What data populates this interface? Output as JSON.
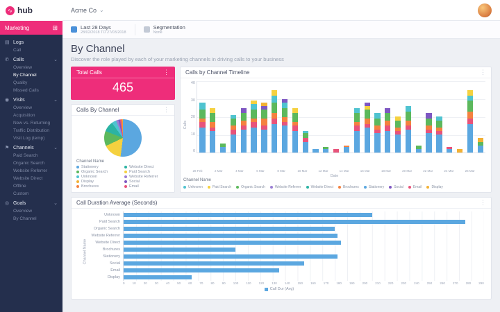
{
  "brand": {
    "logo_text": "hub"
  },
  "topbar": {
    "account": "Acme Co"
  },
  "filterbar": {
    "period": {
      "label": "Last 28 Days",
      "range": "28/02/2018 TO 27/03/2018"
    },
    "segmentation": {
      "label": "Segmentation",
      "value": "None"
    }
  },
  "sidebar": {
    "marketing": {
      "label": "Marketing"
    },
    "sections": [
      {
        "label": "Logs",
        "icon": "logs-icon",
        "expandable": false,
        "items": [
          {
            "label": "Call"
          }
        ]
      },
      {
        "label": "Calls",
        "icon": "calls-icon",
        "expandable": true,
        "items": [
          {
            "label": "Overview"
          },
          {
            "label": "By Channel",
            "active": true
          },
          {
            "label": "Quality"
          },
          {
            "label": "Missed Calls"
          }
        ]
      },
      {
        "label": "Visits",
        "icon": "visits-icon",
        "expandable": true,
        "items": [
          {
            "label": "Overview"
          },
          {
            "label": "Acquisition"
          },
          {
            "label": "New vs. Returning"
          },
          {
            "label": "Traffic Distribution"
          },
          {
            "label": "Visit Log (temp)"
          }
        ]
      },
      {
        "label": "Channels",
        "icon": "channels-icon",
        "expandable": true,
        "items": [
          {
            "label": "Paid Search"
          },
          {
            "label": "Organic Search"
          },
          {
            "label": "Website Referrer"
          },
          {
            "label": "Website Direct"
          },
          {
            "label": "Offline"
          },
          {
            "label": "Custom"
          }
        ]
      },
      {
        "label": "Goals",
        "icon": "goals-icon",
        "expandable": true,
        "items": [
          {
            "label": "Overview"
          },
          {
            "label": "By Channel"
          }
        ]
      }
    ]
  },
  "page": {
    "title": "By Channel",
    "subtitle": "Discover the role played by each of your marketing channels in driving calls to your business"
  },
  "cards": {
    "total_calls": {
      "title": "Total Calls",
      "value": "465"
    },
    "pie": {
      "title": "Calls By Channel",
      "legend_title": "Channel Name"
    },
    "timeline": {
      "title": "Calls by Channel Timeline",
      "legend_title": "Channel Name"
    },
    "duration": {
      "title": "Call Duration Average (Seconds)"
    }
  },
  "channels": [
    {
      "name": "Unknown",
      "color": "#4fc3d0"
    },
    {
      "name": "Paid Search",
      "color": "#f5d13f"
    },
    {
      "name": "Organic Search",
      "color": "#5cb85c"
    },
    {
      "name": "Website Referrer",
      "color": "#9b7fd4"
    },
    {
      "name": "Website Direct",
      "color": "#2bb3a3"
    },
    {
      "name": "Brochures",
      "color": "#f4813f"
    },
    {
      "name": "Stationery",
      "color": "#5ba7e0"
    },
    {
      "name": "Social",
      "color": "#7e57c2"
    },
    {
      "name": "Email",
      "color": "#e8537a"
    },
    {
      "name": "Display",
      "color": "#f2b134"
    }
  ],
  "chart_data": [
    {
      "id": "calls_by_channel_pie",
      "type": "pie",
      "title": "Calls By Channel",
      "legend_title": "Channel Name",
      "legend_order": [
        "Stationery",
        "Website Direct",
        "Organic Search",
        "Paid Search",
        "Unknown",
        "Website Referrer",
        "Display",
        "Social",
        "Brochures",
        "Email"
      ],
      "slices": [
        {
          "channel": "Stationery",
          "value": 52
        },
        {
          "channel": "Paid Search",
          "value": 16
        },
        {
          "channel": "Organic Search",
          "value": 13
        },
        {
          "channel": "Website Direct",
          "value": 9
        },
        {
          "channel": "Unknown",
          "value": 4
        },
        {
          "channel": "Website Referrer",
          "value": 2
        },
        {
          "channel": "Social",
          "value": 1.5
        },
        {
          "channel": "Email",
          "value": 1
        },
        {
          "channel": "Brochures",
          "value": 1
        },
        {
          "channel": "Display",
          "value": 0.5
        }
      ]
    },
    {
      "id": "calls_by_channel_timeline",
      "type": "bar",
      "stacked": true,
      "title": "Calls by Channel Timeline",
      "xlabel": "Date",
      "ylabel": "Calls",
      "ylim": [
        0,
        40
      ],
      "yticks": [
        0,
        10,
        20,
        30,
        40
      ],
      "legend_title": "Channel Name",
      "legend_order": [
        "Unknown",
        "Paid Search",
        "Organic Search",
        "Website Referrer",
        "Website Direct",
        "Brochures",
        "Stationery",
        "Social",
        "Email",
        "Display"
      ],
      "bars": [
        {
          "date": "28 Feb",
          "segments": {
            "Stationery": 14,
            "Email": 3,
            "Brochures": 2,
            "Organic Search": 5,
            "Unknown": 4
          }
        },
        {
          "date": "1 Mar",
          "segments": {
            "Stationery": 12,
            "Email": 2,
            "Brochures": 3,
            "Organic Search": 5,
            "Paid Search": 3
          }
        },
        {
          "date": "2 Mar",
          "segments": {
            "Stationery": 3,
            "Organic Search": 2
          }
        },
        {
          "date": "3 Mar",
          "segments": {
            "Stationery": 10,
            "Email": 3,
            "Brochures": 2,
            "Organic Search": 4,
            "Unknown": 2
          }
        },
        {
          "date": "4 Mar",
          "segments": {
            "Stationery": 13,
            "Email": 2,
            "Brochures": 3,
            "Organic Search": 4,
            "Social": 3
          }
        },
        {
          "date": "5 Mar",
          "segments": {
            "Stationery": 14,
            "Email": 3,
            "Brochures": 2,
            "Organic Search": 5,
            "Unknown": 3,
            "Paid Search": 2
          }
        },
        {
          "date": "6 Mar",
          "segments": {
            "Stationery": 13,
            "Email": 2,
            "Brochures": 4,
            "Organic Search": 5,
            "Social": 2,
            "Display": 2
          }
        },
        {
          "date": "7 Mar",
          "segments": {
            "Stationery": 16,
            "Email": 3,
            "Brochures": 3,
            "Organic Search": 6,
            "Unknown": 4,
            "Paid Search": 3
          }
        },
        {
          "date": "8 Mar",
          "segments": {
            "Stationery": 15,
            "Email": 2,
            "Brochures": 3,
            "Organic Search": 5,
            "Unknown": 3,
            "Social": 2
          }
        },
        {
          "date": "9 Mar",
          "segments": {
            "Stationery": 12,
            "Email": 3,
            "Brochures": 2,
            "Organic Search": 5,
            "Paid Search": 3
          }
        },
        {
          "date": "10 Mar",
          "segments": {
            "Stationery": 6,
            "Email": 2,
            "Organic Search": 3,
            "Unknown": 1
          }
        },
        {
          "date": "11 Mar",
          "segments": {
            "Stationery": 2
          }
        },
        {
          "date": "12 Mar",
          "segments": {
            "Stationery": 2,
            "Organic Search": 1
          }
        },
        {
          "date": "13 Mar",
          "segments": {
            "Email": 2
          }
        },
        {
          "date": "14 Mar",
          "segments": {
            "Stationery": 3,
            "Brochures": 1
          }
        },
        {
          "date": "15 Mar",
          "segments": {
            "Stationery": 12,
            "Email": 3,
            "Brochures": 2,
            "Organic Search": 5,
            "Unknown": 3
          }
        },
        {
          "date": "16 Mar",
          "segments": {
            "Stationery": 14,
            "Email": 2,
            "Brochures": 3,
            "Organic Search": 5,
            "Paid Search": 2,
            "Social": 2
          }
        },
        {
          "date": "17 Mar",
          "segments": {
            "Stationery": 11,
            "Email": 2,
            "Brochures": 2,
            "Organic Search": 4,
            "Unknown": 3
          }
        },
        {
          "date": "18 Mar",
          "segments": {
            "Stationery": 12,
            "Email": 3,
            "Brochures": 3,
            "Organic Search": 4,
            "Social": 3
          }
        },
        {
          "date": "19 Mar",
          "segments": {
            "Stationery": 10,
            "Email": 2,
            "Brochures": 2,
            "Organic Search": 4,
            "Paid Search": 2
          }
        },
        {
          "date": "20 Mar",
          "segments": {
            "Stationery": 13,
            "Email": 2,
            "Brochures": 3,
            "Organic Search": 5,
            "Unknown": 3
          }
        },
        {
          "date": "21 Mar",
          "segments": {
            "Stationery": 2,
            "Organic Search": 2
          }
        },
        {
          "date": "22 Mar",
          "segments": {
            "Stationery": 11,
            "Email": 2,
            "Brochures": 2,
            "Organic Search": 4,
            "Social": 3
          }
        },
        {
          "date": "23 Mar",
          "segments": {
            "Stationery": 10,
            "Email": 2,
            "Brochures": 2,
            "Organic Search": 4,
            "Unknown": 2
          }
        },
        {
          "date": "24 Mar",
          "segments": {
            "Stationery": 2,
            "Email": 1
          }
        },
        {
          "date": "25 Mar",
          "segments": {
            "Display": 2
          }
        },
        {
          "date": "26 Mar",
          "segments": {
            "Stationery": 16,
            "Email": 3,
            "Brochures": 4,
            "Organic Search": 6,
            "Unknown": 3,
            "Paid Search": 3
          }
        },
        {
          "date": "27 Mar",
          "segments": {
            "Stationery": 4,
            "Organic Search": 2,
            "Display": 2
          }
        }
      ]
    },
    {
      "id": "call_duration_average",
      "type": "bar",
      "orientation": "horizontal",
      "title": "Call Duration Average (Seconds)",
      "xlabel": "Call Dur (Avg)",
      "ylabel": "Channel Name",
      "xlim": [
        0,
        290
      ],
      "xtick_step": 10,
      "legend": "Call Dur (Avg)",
      "bar_color": "#5ba7e0",
      "categories": [
        "Unknown",
        "Paid Search",
        "Organic Search",
        "Website Referrer",
        "Website Direct",
        "Brochures",
        "Stationery",
        "Social",
        "Email",
        "Display"
      ],
      "values": [
        200,
        275,
        170,
        172,
        175,
        90,
        172,
        145,
        125,
        55
      ]
    }
  ]
}
